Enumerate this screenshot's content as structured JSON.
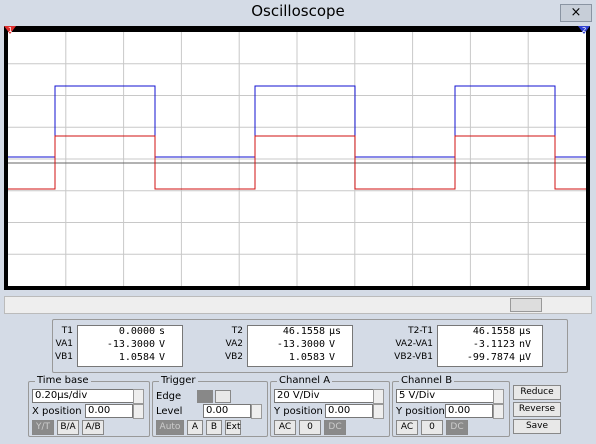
{
  "window": {
    "title": "Oscilloscope",
    "close": "×"
  },
  "screen": {
    "cursor1": "1",
    "cursor2": "2"
  },
  "readouts": [
    {
      "rows": [
        [
          "T1",
          "0.0000",
          "s"
        ],
        [
          "VA1",
          "-13.3000",
          "V"
        ],
        [
          "VB1",
          "1.0584",
          "V"
        ]
      ]
    },
    {
      "rows": [
        [
          "T2",
          "46.1558",
          "μs"
        ],
        [
          "VA2",
          "-13.3000",
          "V"
        ],
        [
          "VB2",
          "1.0583",
          "V"
        ]
      ]
    },
    {
      "rows": [
        [
          "T2-T1",
          "46.1558",
          "μs"
        ],
        [
          "VA2-VA1",
          "-3.1123",
          "nV"
        ],
        [
          "VB2-VB1",
          "-99.7874",
          "μV"
        ]
      ]
    }
  ],
  "timebase": {
    "title": "Time base",
    "scale": "0.20μs/div",
    "pos_label": "X position",
    "pos": "0.00",
    "buttons": [
      "Y/T",
      "B/A",
      "A/B"
    ]
  },
  "trigger": {
    "title": "Trigger",
    "edge_label": "Edge",
    "level_label": "Level",
    "level": "0.00",
    "buttons": [
      "Auto",
      "A",
      "B",
      "Ext"
    ]
  },
  "channel_a": {
    "title": "Channel A",
    "scale": "20 V/Div",
    "pos_label": "Y position",
    "pos": "0.00",
    "buttons": [
      "AC",
      "0",
      "DC"
    ]
  },
  "channel_b": {
    "title": "Channel B",
    "scale": "5 V/Div",
    "pos_label": "Y position",
    "pos": "0.00",
    "buttons": [
      "AC",
      "0",
      "DC"
    ]
  },
  "actions": [
    "Reduce",
    "Reverse",
    "Save"
  ]
}
